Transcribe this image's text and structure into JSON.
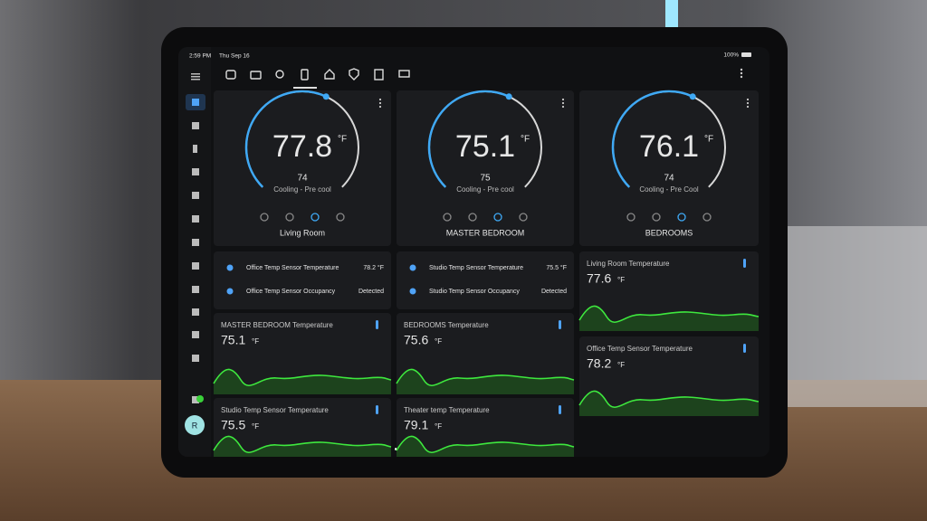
{
  "status_bar": {
    "time": "2:59 PM",
    "date": "Thu Sep 16",
    "battery": "100%"
  },
  "sidebar": {
    "avatar": "R"
  },
  "thermostats": [
    {
      "temperature": "77.8",
      "unit": "°F",
      "target": "74",
      "mode": "Cooling - Pre cool",
      "name": "Living Room"
    },
    {
      "temperature": "75.1",
      "unit": "°F",
      "target": "75",
      "mode": "Cooling - Pre cool",
      "name": "MASTER BEDROOM"
    },
    {
      "temperature": "76.1",
      "unit": "°F",
      "target": "74",
      "mode": "Cooling - Pre Cool",
      "name": "BEDROOMS"
    }
  ],
  "entity_cards": [
    {
      "rows": [
        {
          "label": "Office Temp Sensor Temperature",
          "value": "78.2 °F"
        },
        {
          "label": "Office Temp Sensor Occupancy",
          "value": "Detected"
        }
      ]
    },
    {
      "rows": [
        {
          "label": "Studio Temp Sensor Temperature",
          "value": "75.5 °F"
        },
        {
          "label": "Studio Temp Sensor Occupancy",
          "value": "Detected"
        }
      ]
    }
  ],
  "sensor_cards": [
    {
      "title": "MASTER BEDROOM Temperature",
      "value": "75.1",
      "unit": "°F"
    },
    {
      "title": "BEDROOMS Temperature",
      "value": "75.6",
      "unit": "°F"
    },
    {
      "title": "Living Room Temperature",
      "value": "77.6",
      "unit": "°F"
    },
    {
      "title": "Office Temp Sensor Temperature",
      "value": "78.2",
      "unit": "°F"
    },
    {
      "title": "Studio Temp Sensor Temperature",
      "value": "75.5",
      "unit": "°F"
    },
    {
      "title": "Theater temp Temperature",
      "value": "79.1",
      "unit": "°F"
    }
  ]
}
